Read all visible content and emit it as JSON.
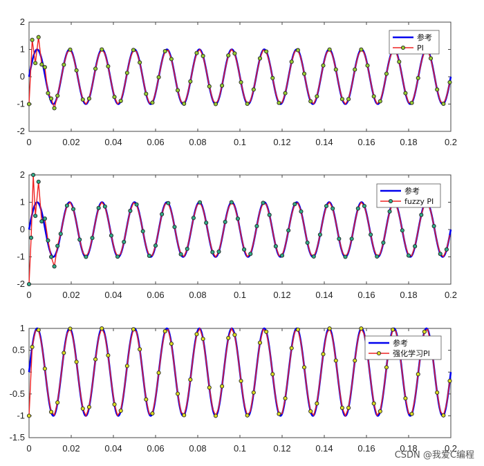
{
  "chart_data": [
    {
      "type": "line",
      "xlim": [
        0,
        0.2
      ],
      "ylim": [
        -2,
        2
      ],
      "xticks": [
        "0",
        "0.02",
        "0.04",
        "0.06",
        "0.08",
        "0.1",
        "0.12",
        "0.14",
        "0.16",
        "0.18",
        "0.2"
      ],
      "yticks": [
        "-2",
        "-1",
        "0",
        "1",
        "2"
      ],
      "reference": {
        "name": "参考",
        "frequency_hz": 65,
        "amplitude": 1,
        "color": "#0000ee"
      },
      "series": [
        {
          "name": "PI",
          "color": "#ee2222",
          "marker_fill": "#99cc33",
          "transient_x": [
            0,
            0.0015,
            0.003,
            0.0045,
            0.006,
            0.0075,
            0.009,
            0.0105,
            0.012
          ],
          "transient_y": [
            -1.0,
            1.35,
            0.5,
            1.45,
            0.45,
            0.35,
            -0.6,
            -0.8,
            -1.15
          ]
        }
      ],
      "legend": "top-right"
    },
    {
      "type": "line",
      "xlim": [
        0,
        0.2
      ],
      "ylim": [
        -2,
        2
      ],
      "xticks": [
        "0",
        "0.02",
        "0.04",
        "0.06",
        "0.08",
        "0.1",
        "0.12",
        "0.14",
        "0.16",
        "0.18",
        "0.2"
      ],
      "yticks": [
        "-2",
        "-1",
        "0",
        "1",
        "2"
      ],
      "reference": {
        "name": "参考",
        "frequency_hz": 65,
        "amplitude": 1,
        "color": "#0000ee"
      },
      "series": [
        {
          "name": "fuzzy PI",
          "color": "#ee2222",
          "marker_fill": "#33aa88",
          "transient_x": [
            0,
            0.001,
            0.002,
            0.003,
            0.0045,
            0.006,
            0.0075,
            0.009,
            0.0105,
            0.012,
            0.0135
          ],
          "transient_y": [
            -2.0,
            -0.3,
            2.0,
            0.5,
            1.75,
            0.3,
            0.4,
            -0.4,
            -1.0,
            -1.35,
            -0.6
          ]
        }
      ],
      "legend": "top-right"
    },
    {
      "type": "line",
      "xlim": [
        0,
        0.2
      ],
      "ylim": [
        -1.5,
        1
      ],
      "xticks": [
        "0",
        "0.02",
        "0.04",
        "0.06",
        "0.08",
        "0.1",
        "0.12",
        "0.14",
        "0.16",
        "0.18",
        "0.2"
      ],
      "yticks": [
        "-1.5",
        "-1",
        "-0.5",
        "0",
        "0.5",
        "1"
      ],
      "reference": {
        "name": "参考",
        "frequency_hz": 65,
        "amplitude": 1,
        "color": "#0000ee"
      },
      "series": [
        {
          "name": "强化学习PI",
          "color": "#ee2222",
          "marker_fill": "#dddd22",
          "transient_x": [
            0
          ],
          "transient_y": [
            -1.0
          ]
        }
      ],
      "legend": "top-right"
    }
  ],
  "watermark": "CSDN @我爱C编程"
}
